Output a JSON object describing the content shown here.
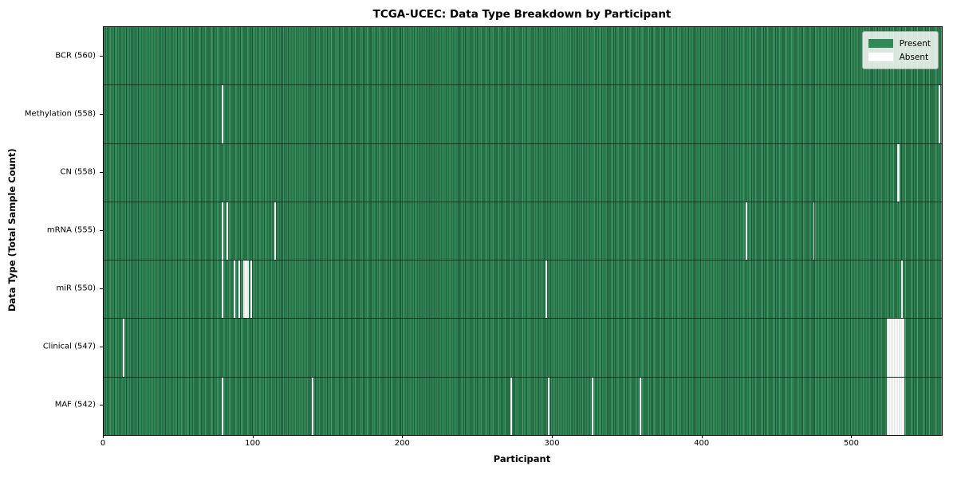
{
  "chart_data": {
    "type": "heatmap",
    "title": "TCGA-UCEC: Data Type Breakdown by Participant",
    "xlabel": "Participant",
    "ylabel": "Data Type (Total Sample Count)",
    "x_ticks": [
      0,
      100,
      200,
      300,
      400,
      500
    ],
    "xlim": [
      0,
      560
    ],
    "n_participants": 560,
    "grid": "off",
    "legend": {
      "position": "upper right",
      "items": [
        {
          "label": "Present",
          "color": "#2e8b57"
        },
        {
          "label": "Absent",
          "color": "#ffffff"
        }
      ]
    },
    "rows": [
      {
        "label": "BCR (560)",
        "data_type": "BCR",
        "present_count": 560,
        "absent_indices": []
      },
      {
        "label": "Methylation (558)",
        "data_type": "Methylation",
        "present_count": 558,
        "absent_indices": [
          79,
          558
        ]
      },
      {
        "label": "CN (558)",
        "data_type": "CN",
        "present_count": 558,
        "absent_indices": [
          530,
          531
        ]
      },
      {
        "label": "mRNA (555)",
        "data_type": "mRNA",
        "present_count": 555,
        "absent_indices": [
          79,
          82,
          114,
          429,
          474
        ]
      },
      {
        "label": "miR (550)",
        "data_type": "miR",
        "present_count": 550,
        "absent_indices": [
          79,
          87,
          90,
          93,
          94,
          95,
          96,
          98,
          295,
          533
        ]
      },
      {
        "label": "Clinical (547)",
        "data_type": "Clinical",
        "present_count": 547,
        "absent_indices": [
          13,
          523,
          524,
          525,
          526,
          527,
          528,
          529,
          530,
          531,
          532,
          533,
          534
        ]
      },
      {
        "label": "MAF (542)",
        "data_type": "MAF",
        "present_count": 542,
        "absent_indices": [
          79,
          139,
          272,
          297,
          326,
          358,
          523,
          524,
          525,
          526,
          527,
          528,
          529,
          530,
          531,
          532,
          533,
          534
        ]
      }
    ],
    "colors": {
      "present": "#2e8b57",
      "absent": "#ffffff",
      "background": "#ffffff"
    }
  }
}
